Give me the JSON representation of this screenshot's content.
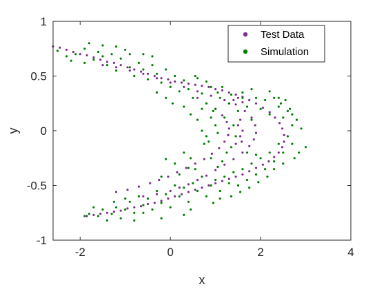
{
  "chart_data": {
    "type": "scatter",
    "xlabel": "x",
    "ylabel": "y",
    "xlim": [
      -2.6,
      4.0
    ],
    "ylim": [
      -1.0,
      1.0
    ],
    "x_ticks": [
      -2,
      0,
      2,
      4
    ],
    "y_ticks": [
      -1,
      -0.5,
      0,
      0.5,
      1
    ],
    "x_tick_labels": [
      "-2",
      "0",
      "2",
      "4"
    ],
    "y_tick_labels": [
      "-1",
      "-0.5",
      "0",
      "0.5",
      "1"
    ],
    "grid": false,
    "box": true,
    "legend_position": "top-right",
    "series": [
      {
        "name": "Test Data",
        "color": "#7e2f8e",
        "marker": "dot",
        "points": [
          [
            -2.6,
            0.77
          ],
          [
            -2.45,
            0.76
          ],
          [
            -2.3,
            0.74
          ],
          [
            -2.15,
            0.72
          ],
          [
            -2.0,
            0.7
          ],
          [
            -1.85,
            0.69
          ],
          [
            -1.7,
            0.67
          ],
          [
            -1.55,
            0.65
          ],
          [
            -1.4,
            0.63
          ],
          [
            -1.25,
            0.62
          ],
          [
            -1.1,
            0.6
          ],
          [
            -0.95,
            0.58
          ],
          [
            -0.8,
            0.56
          ],
          [
            -0.65,
            0.54
          ],
          [
            -0.5,
            0.52
          ],
          [
            -0.35,
            0.5
          ],
          [
            -0.2,
            0.48
          ],
          [
            -0.05,
            0.47
          ],
          [
            0.1,
            0.45
          ],
          [
            0.25,
            0.44
          ],
          [
            0.4,
            0.43
          ],
          [
            0.55,
            0.42
          ],
          [
            0.7,
            0.41
          ],
          [
            0.85,
            0.4
          ],
          [
            1.0,
            0.38
          ],
          [
            1.15,
            0.37
          ],
          [
            1.3,
            0.35
          ],
          [
            1.45,
            0.33
          ],
          [
            1.6,
            0.31
          ],
          [
            1.75,
            0.28
          ],
          [
            1.9,
            0.25
          ],
          [
            2.05,
            0.21
          ],
          [
            2.2,
            0.17
          ],
          [
            2.32,
            0.12
          ],
          [
            2.42,
            0.07
          ],
          [
            2.48,
            0.02
          ],
          [
            2.52,
            -0.04
          ],
          [
            2.52,
            -0.1
          ],
          [
            2.48,
            -0.15
          ],
          [
            2.4,
            -0.2
          ],
          [
            2.3,
            -0.24
          ],
          [
            2.18,
            -0.28
          ],
          [
            2.05,
            -0.31
          ],
          [
            1.9,
            -0.34
          ],
          [
            1.75,
            -0.37
          ],
          [
            1.6,
            -0.4
          ],
          [
            1.45,
            -0.42
          ],
          [
            1.3,
            -0.44
          ],
          [
            1.15,
            -0.46
          ],
          [
            1.0,
            -0.48
          ],
          [
            0.85,
            -0.5
          ],
          [
            0.7,
            -0.52
          ],
          [
            0.55,
            -0.54
          ],
          [
            0.4,
            -0.56
          ],
          [
            0.25,
            -0.58
          ],
          [
            0.1,
            -0.6
          ],
          [
            -0.05,
            -0.62
          ],
          [
            -0.2,
            -0.64
          ],
          [
            -0.35,
            -0.66
          ],
          [
            -0.5,
            -0.67
          ],
          [
            -0.65,
            -0.69
          ],
          [
            -0.8,
            -0.7
          ],
          [
            -0.95,
            -0.71
          ],
          [
            -1.1,
            -0.73
          ],
          [
            -1.25,
            -0.74
          ],
          [
            -1.4,
            -0.75
          ],
          [
            -1.55,
            -0.76
          ],
          [
            -1.7,
            -0.77
          ],
          [
            -1.85,
            -0.78
          ],
          [
            -1.5,
            0.6
          ],
          [
            -1.2,
            0.58
          ],
          [
            -0.9,
            0.55
          ],
          [
            -0.6,
            0.52
          ],
          [
            -0.3,
            0.48
          ],
          [
            0.0,
            0.44
          ],
          [
            0.3,
            0.4
          ],
          [
            0.6,
            0.36
          ],
          [
            0.9,
            0.32
          ],
          [
            1.2,
            0.28
          ],
          [
            1.45,
            0.24
          ],
          [
            1.65,
            0.18
          ],
          [
            1.8,
            0.12
          ],
          [
            1.88,
            0.05
          ],
          [
            1.9,
            -0.02
          ],
          [
            1.85,
            -0.08
          ],
          [
            1.75,
            -0.14
          ],
          [
            1.6,
            -0.2
          ],
          [
            1.4,
            -0.26
          ],
          [
            1.2,
            -0.31
          ],
          [
            1.0,
            -0.36
          ],
          [
            0.8,
            -0.41
          ],
          [
            0.6,
            -0.45
          ],
          [
            0.4,
            -0.49
          ],
          [
            0.2,
            -0.52
          ],
          [
            0.0,
            -0.55
          ],
          [
            -0.3,
            -0.58
          ],
          [
            -0.6,
            -0.6
          ],
          [
            0.6,
            0.3
          ],
          [
            0.8,
            0.25
          ],
          [
            1.0,
            0.2
          ],
          [
            1.15,
            0.14
          ],
          [
            1.25,
            0.08
          ],
          [
            1.3,
            0.02
          ],
          [
            1.28,
            -0.04
          ],
          [
            1.2,
            -0.1
          ],
          [
            1.08,
            -0.16
          ],
          [
            0.92,
            -0.21
          ],
          [
            0.75,
            -0.26
          ],
          [
            0.55,
            -0.3
          ],
          [
            0.35,
            -0.34
          ],
          [
            0.15,
            -0.38
          ],
          [
            -0.05,
            -0.42
          ],
          [
            -0.25,
            -0.45
          ],
          [
            -0.45,
            -0.48
          ],
          [
            -0.7,
            -0.51
          ],
          [
            -0.95,
            -0.54
          ],
          [
            -1.2,
            -0.56
          ],
          [
            1.5,
            0.3
          ],
          [
            1.6,
            0.26
          ],
          [
            1.4,
            0.28
          ],
          [
            1.3,
            0.25
          ],
          [
            1.55,
            0.1
          ],
          [
            1.6,
            0.0
          ],
          [
            1.55,
            -0.05
          ],
          [
            1.45,
            -0.12
          ],
          [
            1.5,
            0.05
          ],
          [
            1.58,
            -0.1
          ]
        ]
      },
      {
        "name": "Simulation",
        "color": "#008000",
        "marker": "dot",
        "points": [
          [
            -2.5,
            0.73
          ],
          [
            -2.3,
            0.68
          ],
          [
            -2.1,
            0.7
          ],
          [
            -1.9,
            0.75
          ],
          [
            -1.8,
            0.8
          ],
          [
            -1.7,
            0.65
          ],
          [
            -1.6,
            0.72
          ],
          [
            -1.5,
            0.78
          ],
          [
            -1.4,
            0.6
          ],
          [
            -1.3,
            0.7
          ],
          [
            -1.2,
            0.55
          ],
          [
            -1.1,
            0.66
          ],
          [
            -1.0,
            0.74
          ],
          [
            -0.9,
            0.58
          ],
          [
            -0.8,
            0.5
          ],
          [
            -0.7,
            0.62
          ],
          [
            -0.6,
            0.56
          ],
          [
            -0.5,
            0.47
          ],
          [
            -0.4,
            0.6
          ],
          [
            -0.3,
            0.52
          ],
          [
            -0.2,
            0.44
          ],
          [
            -0.1,
            0.56
          ],
          [
            0.0,
            0.4
          ],
          [
            0.1,
            0.5
          ],
          [
            0.2,
            0.36
          ],
          [
            0.3,
            0.46
          ],
          [
            0.4,
            0.38
          ],
          [
            0.5,
            0.3
          ],
          [
            0.6,
            0.48
          ],
          [
            0.7,
            0.34
          ],
          [
            0.8,
            0.25
          ],
          [
            0.9,
            0.4
          ],
          [
            1.0,
            0.2
          ],
          [
            1.1,
            0.3
          ],
          [
            1.2,
            0.12
          ],
          [
            1.3,
            0.25
          ],
          [
            1.4,
            0.05
          ],
          [
            1.5,
            0.18
          ],
          [
            1.6,
            0.3
          ],
          [
            1.7,
            0.22
          ],
          [
            1.8,
            0.1
          ],
          [
            1.9,
            0.3
          ],
          [
            2.0,
            0.2
          ],
          [
            2.1,
            0.28
          ],
          [
            2.2,
            0.15
          ],
          [
            2.3,
            0.3
          ],
          [
            2.4,
            0.22
          ],
          [
            2.5,
            0.12
          ],
          [
            2.6,
            0.18
          ],
          [
            2.7,
            0.05
          ],
          [
            2.8,
            0.1
          ],
          [
            2.9,
            0.02
          ],
          [
            2.6,
            -0.05
          ],
          [
            2.7,
            -0.12
          ],
          [
            2.5,
            -0.2
          ],
          [
            2.4,
            -0.12
          ],
          [
            2.3,
            -0.28
          ],
          [
            2.2,
            -0.2
          ],
          [
            2.1,
            -0.35
          ],
          [
            2.0,
            -0.25
          ],
          [
            1.9,
            -0.4
          ],
          [
            1.8,
            -0.3
          ],
          [
            1.7,
            -0.45
          ],
          [
            1.6,
            -0.35
          ],
          [
            1.5,
            -0.5
          ],
          [
            1.4,
            -0.38
          ],
          [
            1.3,
            -0.48
          ],
          [
            1.2,
            -0.42
          ],
          [
            1.1,
            -0.55
          ],
          [
            1.0,
            -0.45
          ],
          [
            0.9,
            -0.5
          ],
          [
            0.8,
            -0.6
          ],
          [
            0.7,
            -0.42
          ],
          [
            0.6,
            -0.55
          ],
          [
            0.5,
            -0.48
          ],
          [
            0.4,
            -0.65
          ],
          [
            0.3,
            -0.52
          ],
          [
            0.2,
            -0.6
          ],
          [
            0.1,
            -0.5
          ],
          [
            0.0,
            -0.7
          ],
          [
            -0.1,
            -0.58
          ],
          [
            -0.2,
            -0.66
          ],
          [
            -0.3,
            -0.55
          ],
          [
            -0.4,
            -0.72
          ],
          [
            -0.5,
            -0.62
          ],
          [
            -0.6,
            -0.68
          ],
          [
            -0.7,
            -0.6
          ],
          [
            -0.8,
            -0.75
          ],
          [
            -0.9,
            -0.65
          ],
          [
            -1.0,
            -0.72
          ],
          [
            -1.1,
            -0.8
          ],
          [
            -1.2,
            -0.7
          ],
          [
            -1.3,
            -0.76
          ],
          [
            -1.4,
            -0.82
          ],
          [
            -1.5,
            -0.72
          ],
          [
            -1.6,
            -0.78
          ],
          [
            -1.7,
            -0.7
          ],
          [
            -1.8,
            -0.76
          ],
          [
            -1.9,
            -0.78
          ],
          [
            -0.1,
            -0.26
          ],
          [
            0.1,
            -0.3
          ],
          [
            0.2,
            -0.4
          ],
          [
            0.3,
            -0.2
          ],
          [
            0.4,
            -0.34
          ],
          [
            -0.2,
            -0.42
          ],
          [
            0.6,
            0.1
          ],
          [
            0.7,
            0.0
          ],
          [
            0.8,
            -0.05
          ],
          [
            0.9,
            0.12
          ],
          [
            0.75,
            -0.12
          ],
          [
            0.85,
            -0.1
          ],
          [
            1.0,
            0.05
          ],
          [
            1.05,
            -0.02
          ],
          [
            0.95,
            0.18
          ],
          [
            0.7,
            0.2
          ],
          [
            1.6,
            0.35
          ],
          [
            1.8,
            0.38
          ],
          [
            2.2,
            0.36
          ],
          [
            2.4,
            0.3
          ],
          [
            2.45,
            0.25
          ],
          [
            2.55,
            0.28
          ],
          [
            2.65,
            0.2
          ],
          [
            2.7,
            0.15
          ],
          [
            3.0,
            -0.15
          ],
          [
            2.85,
            -0.2
          ],
          [
            2.75,
            -0.25
          ],
          [
            2.5,
            -0.3
          ],
          [
            2.3,
            -0.35
          ],
          [
            2.15,
            -0.42
          ],
          [
            1.95,
            -0.47
          ],
          [
            1.75,
            -0.52
          ],
          [
            1.55,
            -0.56
          ],
          [
            1.35,
            -0.6
          ],
          [
            1.1,
            -0.62
          ],
          [
            0.95,
            -0.66
          ],
          [
            0.45,
            -0.72
          ],
          [
            0.3,
            -0.77
          ],
          [
            -0.2,
            -0.8
          ],
          [
            -0.6,
            -0.75
          ],
          [
            -0.8,
            -0.82
          ],
          [
            -1.0,
            -0.62
          ],
          [
            -1.25,
            -0.65
          ],
          [
            -0.4,
            0.68
          ],
          [
            -0.6,
            0.7
          ],
          [
            -0.9,
            0.7
          ],
          [
            -1.2,
            0.77
          ],
          [
            -1.5,
            0.68
          ],
          [
            -1.9,
            0.62
          ],
          [
            -2.2,
            0.64
          ],
          [
            -0.3,
            0.35
          ],
          [
            -0.1,
            0.3
          ],
          [
            0.05,
            0.25
          ],
          [
            0.3,
            0.22
          ],
          [
            0.45,
            0.15
          ],
          [
            0.55,
            0.5
          ],
          [
            0.8,
            0.45
          ],
          [
            1.05,
            0.35
          ],
          [
            1.15,
            0.4
          ],
          [
            1.35,
            0.33
          ],
          [
            1.45,
            -0.05
          ],
          [
            1.35,
            -0.15
          ],
          [
            1.25,
            -0.2
          ],
          [
            1.15,
            -0.28
          ],
          [
            1.05,
            -0.33
          ],
          [
            0.9,
            -0.25
          ],
          [
            0.55,
            -0.35
          ],
          [
            0.45,
            -0.25
          ],
          [
            1.7,
            -0.2
          ],
          [
            1.9,
            -0.22
          ]
        ]
      }
    ]
  }
}
